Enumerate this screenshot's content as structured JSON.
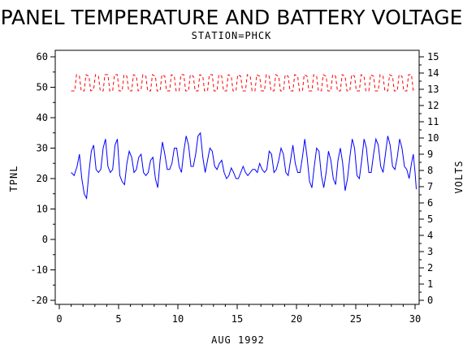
{
  "chart_data": {
    "type": "line",
    "title": "PANEL TEMPERATURE AND BATTERY VOLTAGE",
    "subtitle": "STATION=PHCK",
    "xlabel": "AUG 1992",
    "ylabel_left": "TPNL",
    "ylabel_right": "VOLTS",
    "xlim": [
      0,
      30
    ],
    "ylim_left": [
      -20,
      60
    ],
    "ylim_right": [
      0,
      15
    ],
    "x_ticks": [
      0,
      5,
      10,
      15,
      20,
      25,
      30
    ],
    "y_left_ticks": [
      -20,
      -10,
      0,
      10,
      20,
      30,
      40,
      50,
      60
    ],
    "y_right_ticks": [
      0,
      1,
      2,
      3,
      4,
      5,
      6,
      7,
      8,
      9,
      10,
      11,
      12,
      13,
      14,
      15
    ],
    "grid": false,
    "series": [
      {
        "axis": "left",
        "color": "#0000ff",
        "style": "solid",
        "points": [
          [
            1.0,
            22
          ],
          [
            1.25,
            21
          ],
          [
            1.5,
            24
          ],
          [
            1.7,
            28
          ],
          [
            1.9,
            20
          ],
          [
            2.1,
            15
          ],
          [
            2.3,
            13.5
          ],
          [
            2.5,
            22
          ],
          [
            2.7,
            29
          ],
          [
            2.9,
            31
          ],
          [
            3.1,
            23
          ],
          [
            3.3,
            22
          ],
          [
            3.5,
            23
          ],
          [
            3.7,
            30
          ],
          [
            3.9,
            33
          ],
          [
            4.1,
            24
          ],
          [
            4.3,
            22
          ],
          [
            4.5,
            23
          ],
          [
            4.7,
            31
          ],
          [
            4.9,
            33
          ],
          [
            5.1,
            21
          ],
          [
            5.3,
            19
          ],
          [
            5.5,
            18
          ],
          [
            5.7,
            25
          ],
          [
            5.9,
            29
          ],
          [
            6.1,
            27
          ],
          [
            6.3,
            22
          ],
          [
            6.5,
            23
          ],
          [
            6.7,
            27
          ],
          [
            6.9,
            28
          ],
          [
            7.1,
            22
          ],
          [
            7.3,
            21
          ],
          [
            7.5,
            22
          ],
          [
            7.7,
            26
          ],
          [
            7.9,
            27
          ],
          [
            8.1,
            20
          ],
          [
            8.3,
            17
          ],
          [
            8.5,
            26
          ],
          [
            8.7,
            32
          ],
          [
            8.9,
            28
          ],
          [
            9.1,
            23
          ],
          [
            9.3,
            23
          ],
          [
            9.5,
            25
          ],
          [
            9.7,
            30
          ],
          [
            9.9,
            30
          ],
          [
            10.1,
            24
          ],
          [
            10.3,
            22
          ],
          [
            10.5,
            29
          ],
          [
            10.7,
            34
          ],
          [
            10.9,
            31
          ],
          [
            11.1,
            24
          ],
          [
            11.3,
            24
          ],
          [
            11.5,
            28
          ],
          [
            11.7,
            34
          ],
          [
            11.9,
            35
          ],
          [
            12.1,
            27
          ],
          [
            12.3,
            22
          ],
          [
            12.5,
            26
          ],
          [
            12.7,
            30
          ],
          [
            12.9,
            29
          ],
          [
            13.1,
            24
          ],
          [
            13.3,
            23
          ],
          [
            13.5,
            25
          ],
          [
            13.7,
            26
          ],
          [
            13.9,
            22
          ],
          [
            14.1,
            20
          ],
          [
            14.3,
            21
          ],
          [
            14.5,
            23.5
          ],
          [
            14.7,
            22
          ],
          [
            14.9,
            20
          ],
          [
            15.1,
            20
          ],
          [
            15.3,
            22
          ],
          [
            15.5,
            24
          ],
          [
            15.7,
            22
          ],
          [
            15.9,
            21
          ],
          [
            16.1,
            22
          ],
          [
            16.3,
            23
          ],
          [
            16.5,
            23
          ],
          [
            16.7,
            22
          ],
          [
            16.9,
            25
          ],
          [
            17.1,
            23
          ],
          [
            17.3,
            22
          ],
          [
            17.5,
            23
          ],
          [
            17.7,
            29
          ],
          [
            17.9,
            28
          ],
          [
            18.1,
            22
          ],
          [
            18.3,
            23
          ],
          [
            18.5,
            26
          ],
          [
            18.7,
            30
          ],
          [
            18.9,
            28
          ],
          [
            19.1,
            22
          ],
          [
            19.3,
            21
          ],
          [
            19.5,
            26
          ],
          [
            19.7,
            31
          ],
          [
            19.9,
            25
          ],
          [
            20.1,
            22
          ],
          [
            20.3,
            22
          ],
          [
            20.5,
            27
          ],
          [
            20.7,
            33
          ],
          [
            20.9,
            27
          ],
          [
            21.1,
            19
          ],
          [
            21.3,
            17
          ],
          [
            21.5,
            24
          ],
          [
            21.7,
            30
          ],
          [
            21.9,
            29
          ],
          [
            22.1,
            21
          ],
          [
            22.3,
            17
          ],
          [
            22.5,
            22
          ],
          [
            22.7,
            29
          ],
          [
            22.9,
            26
          ],
          [
            23.1,
            20
          ],
          [
            23.3,
            18
          ],
          [
            23.5,
            26
          ],
          [
            23.7,
            30
          ],
          [
            23.9,
            25
          ],
          [
            24.1,
            16
          ],
          [
            24.3,
            20
          ],
          [
            24.5,
            27
          ],
          [
            24.7,
            33
          ],
          [
            24.9,
            30
          ],
          [
            25.1,
            21
          ],
          [
            25.3,
            20
          ],
          [
            25.5,
            26
          ],
          [
            25.7,
            33
          ],
          [
            25.9,
            30
          ],
          [
            26.1,
            22
          ],
          [
            26.3,
            22
          ],
          [
            26.5,
            28
          ],
          [
            26.7,
            33
          ],
          [
            26.9,
            31
          ],
          [
            27.1,
            24
          ],
          [
            27.3,
            22
          ],
          [
            27.5,
            28
          ],
          [
            27.7,
            34
          ],
          [
            27.9,
            31
          ],
          [
            28.1,
            24
          ],
          [
            28.3,
            23
          ],
          [
            28.5,
            27
          ],
          [
            28.7,
            33
          ],
          [
            28.9,
            30
          ],
          [
            29.1,
            24
          ],
          [
            29.3,
            23
          ],
          [
            29.5,
            20
          ],
          [
            29.7,
            25
          ],
          [
            29.85,
            28
          ],
          [
            30.0,
            22
          ],
          [
            30.1,
            16.5
          ]
        ]
      },
      {
        "axis": "right",
        "color": "#ff0000",
        "style": "dashed",
        "points": [
          [
            1.0,
            12.9
          ],
          [
            1.3,
            12.9
          ],
          [
            1.45,
            13.9
          ],
          [
            1.7,
            13.8
          ],
          [
            1.85,
            12.9
          ],
          [
            2.1,
            12.9
          ],
          [
            2.25,
            13.9
          ],
          [
            2.5,
            13.8
          ],
          [
            2.65,
            12.9
          ],
          [
            2.9,
            13.0
          ],
          [
            3.05,
            13.9
          ],
          [
            3.3,
            13.8
          ],
          [
            3.45,
            12.9
          ],
          [
            3.7,
            12.9
          ],
          [
            3.85,
            13.9
          ],
          [
            4.1,
            13.9
          ],
          [
            4.25,
            12.9
          ],
          [
            4.5,
            12.9
          ],
          [
            4.65,
            13.9
          ],
          [
            4.9,
            13.9
          ],
          [
            5.05,
            12.9
          ],
          [
            5.3,
            12.9
          ],
          [
            5.45,
            13.9
          ],
          [
            5.7,
            13.8
          ],
          [
            5.85,
            12.9
          ],
          [
            6.1,
            12.9
          ],
          [
            6.25,
            13.9
          ],
          [
            6.5,
            13.8
          ],
          [
            6.65,
            12.9
          ],
          [
            6.9,
            13.0
          ],
          [
            7.05,
            13.9
          ],
          [
            7.3,
            13.8
          ],
          [
            7.45,
            12.9
          ],
          [
            7.7,
            12.9
          ],
          [
            7.85,
            13.9
          ],
          [
            8.1,
            13.8
          ],
          [
            8.25,
            12.9
          ],
          [
            8.5,
            12.9
          ],
          [
            8.65,
            13.9
          ],
          [
            8.9,
            13.8
          ],
          [
            9.05,
            12.9
          ],
          [
            9.3,
            12.9
          ],
          [
            9.45,
            13.9
          ],
          [
            9.7,
            13.8
          ],
          [
            9.85,
            12.9
          ],
          [
            10.1,
            12.9
          ],
          [
            10.25,
            13.9
          ],
          [
            10.5,
            13.9
          ],
          [
            10.65,
            12.9
          ],
          [
            10.9,
            12.9
          ],
          [
            11.05,
            13.9
          ],
          [
            11.3,
            13.8
          ],
          [
            11.45,
            12.9
          ],
          [
            11.7,
            12.9
          ],
          [
            11.85,
            13.9
          ],
          [
            12.1,
            13.8
          ],
          [
            12.25,
            12.9
          ],
          [
            12.5,
            12.9
          ],
          [
            12.65,
            13.9
          ],
          [
            12.9,
            13.9
          ],
          [
            13.05,
            12.9
          ],
          [
            13.3,
            12.9
          ],
          [
            13.45,
            13.9
          ],
          [
            13.7,
            13.8
          ],
          [
            13.85,
            12.9
          ],
          [
            14.1,
            12.9
          ],
          [
            14.25,
            13.9
          ],
          [
            14.5,
            13.8
          ],
          [
            14.65,
            12.9
          ],
          [
            14.9,
            12.9
          ],
          [
            15.05,
            13.9
          ],
          [
            15.3,
            13.8
          ],
          [
            15.45,
            12.9
          ],
          [
            15.7,
            12.9
          ],
          [
            15.85,
            13.9
          ],
          [
            16.1,
            13.8
          ],
          [
            16.25,
            12.9
          ],
          [
            16.5,
            12.9
          ],
          [
            16.65,
            13.9
          ],
          [
            16.9,
            13.8
          ],
          [
            17.05,
            12.9
          ],
          [
            17.3,
            12.9
          ],
          [
            17.45,
            13.9
          ],
          [
            17.7,
            13.8
          ],
          [
            17.85,
            12.9
          ],
          [
            18.1,
            12.9
          ],
          [
            18.25,
            13.9
          ],
          [
            18.5,
            13.8
          ],
          [
            18.65,
            12.9
          ],
          [
            18.9,
            12.9
          ],
          [
            19.05,
            13.9
          ],
          [
            19.3,
            13.8
          ],
          [
            19.45,
            12.9
          ],
          [
            19.7,
            12.9
          ],
          [
            19.85,
            13.9
          ],
          [
            20.1,
            13.8
          ],
          [
            20.25,
            12.9
          ],
          [
            20.5,
            12.9
          ],
          [
            20.65,
            13.9
          ],
          [
            20.9,
            13.8
          ],
          [
            21.05,
            12.9
          ],
          [
            21.3,
            12.9
          ],
          [
            21.45,
            13.9
          ],
          [
            21.7,
            13.8
          ],
          [
            21.85,
            12.9
          ],
          [
            22.1,
            12.9
          ],
          [
            22.25,
            13.9
          ],
          [
            22.5,
            13.8
          ],
          [
            22.65,
            12.9
          ],
          [
            22.9,
            12.9
          ],
          [
            23.05,
            13.9
          ],
          [
            23.3,
            13.8
          ],
          [
            23.45,
            12.9
          ],
          [
            23.7,
            12.9
          ],
          [
            23.85,
            13.9
          ],
          [
            24.1,
            13.8
          ],
          [
            24.25,
            12.9
          ],
          [
            24.5,
            12.9
          ],
          [
            24.65,
            13.9
          ],
          [
            24.9,
            13.8
          ],
          [
            25.05,
            12.9
          ],
          [
            25.3,
            12.9
          ],
          [
            25.45,
            13.9
          ],
          [
            25.7,
            13.8
          ],
          [
            25.85,
            12.9
          ],
          [
            26.1,
            12.9
          ],
          [
            26.25,
            13.9
          ],
          [
            26.5,
            13.8
          ],
          [
            26.65,
            12.9
          ],
          [
            26.9,
            12.9
          ],
          [
            27.05,
            13.9
          ],
          [
            27.3,
            13.8
          ],
          [
            27.45,
            12.9
          ],
          [
            27.7,
            12.9
          ],
          [
            27.85,
            13.9
          ],
          [
            28.1,
            13.8
          ],
          [
            28.25,
            12.9
          ],
          [
            28.5,
            12.9
          ],
          [
            28.65,
            13.9
          ],
          [
            28.9,
            13.8
          ],
          [
            29.05,
            12.9
          ],
          [
            29.3,
            12.9
          ],
          [
            29.45,
            13.9
          ],
          [
            29.7,
            13.9
          ],
          [
            29.85,
            12.9
          ],
          [
            30.0,
            13.0
          ]
        ]
      }
    ]
  }
}
